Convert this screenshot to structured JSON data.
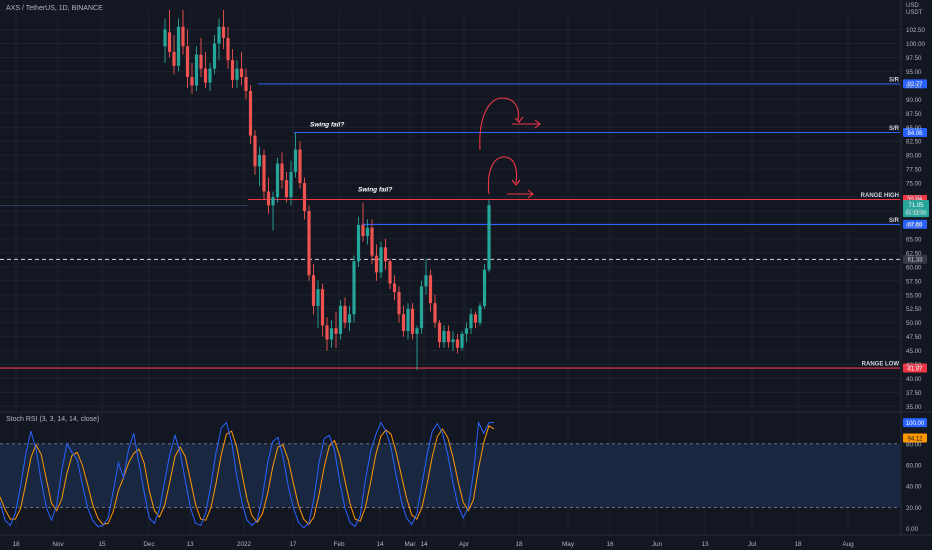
{
  "header": {
    "symbol_line": "AXS / TetherUS, 1D, BINANCE",
    "currency_top": "USD",
    "currency_bottom": "USDT"
  },
  "indicator": {
    "label": "Stoch RSI (3, 3, 14, 14, close)"
  },
  "colors": {
    "background": "#131722",
    "up": "#26a69a",
    "down": "#ef5350",
    "sr_line": "#2962ff",
    "range_line": "#f23645",
    "stoch_k": "#2962ff",
    "stoch_d": "#ff9800",
    "grid": "#1e222d",
    "axis_text": "#b2b5be",
    "annotation": "#f23645"
  },
  "chart_data": [
    {
      "type": "candlestick",
      "y_axis_ticks": [
        "102.50",
        "100.00",
        "97.50",
        "95.00",
        "92.50",
        "90.00",
        "87.50",
        "85.00",
        "82.50",
        "80.00",
        "77.50",
        "75.00",
        "72.50",
        "70.00",
        "67.50",
        "65.00",
        "62.50",
        "60.00",
        "57.50",
        "55.00",
        "52.50",
        "50.00",
        "47.50",
        "45.00",
        "42.50",
        "40.00",
        "37.50",
        "35.00"
      ],
      "ylim": [
        34,
        106
      ],
      "x_axis_ticks": [
        "18",
        "Nov",
        "15",
        "Dec",
        "13",
        "2022",
        "17",
        "Feb",
        "14",
        "Mar",
        "14",
        "Apr",
        "18",
        "May",
        "16",
        "Jun",
        "13",
        "Jul",
        "18",
        "Aug"
      ],
      "horizontal_levels": [
        {
          "label": "S/R",
          "value": 92.77,
          "tag": "92.77",
          "kind": "sr"
        },
        {
          "label": "S/R",
          "value": 84.06,
          "tag": "84.06",
          "kind": "sr"
        },
        {
          "label": "RANGE HIGH",
          "value": 72.06,
          "tag": "72.06",
          "kind": "range"
        },
        {
          "label": "S/R",
          "value": 67.6,
          "tag": "67.60",
          "kind": "sr"
        },
        {
          "label": "RANGE LOW",
          "value": 41.87,
          "tag": "41.87",
          "kind": "range"
        }
      ],
      "dashed_level": {
        "value": 61.33,
        "tag": "61.33"
      },
      "last_price": {
        "price": "71.05",
        "countdown": "01:11:00",
        "value": 71.05
      },
      "annotations": [
        {
          "text": "Swing fail?"
        },
        {
          "text": "Swing fail?"
        }
      ],
      "candles": [
        {
          "o": 99.5,
          "h": 104.5,
          "l": 96.5,
          "c": 102.5
        },
        {
          "o": 102.0,
          "h": 106.0,
          "l": 97.5,
          "c": 98.5
        },
        {
          "o": 98.5,
          "h": 101.5,
          "l": 94.5,
          "c": 96.0
        },
        {
          "o": 96.0,
          "h": 104.5,
          "l": 95.0,
          "c": 103.0
        },
        {
          "o": 103.0,
          "h": 106.0,
          "l": 98.0,
          "c": 99.5
        },
        {
          "o": 99.5,
          "h": 102.5,
          "l": 92.0,
          "c": 94.0
        },
        {
          "o": 94.0,
          "h": 96.5,
          "l": 91.0,
          "c": 92.5
        },
        {
          "o": 92.5,
          "h": 99.5,
          "l": 91.5,
          "c": 98.0
        },
        {
          "o": 98.0,
          "h": 101.0,
          "l": 94.0,
          "c": 95.5
        },
        {
          "o": 95.5,
          "h": 98.5,
          "l": 92.0,
          "c": 93.0
        },
        {
          "o": 93.0,
          "h": 96.5,
          "l": 91.5,
          "c": 95.5
        },
        {
          "o": 95.5,
          "h": 101.5,
          "l": 94.5,
          "c": 100.0
        },
        {
          "o": 100.0,
          "h": 104.5,
          "l": 97.0,
          "c": 103.0
        },
        {
          "o": 103.0,
          "h": 106.0,
          "l": 99.0,
          "c": 101.0
        },
        {
          "o": 101.0,
          "h": 103.0,
          "l": 95.5,
          "c": 97.0
        },
        {
          "o": 97.0,
          "h": 99.0,
          "l": 92.0,
          "c": 93.5
        },
        {
          "o": 93.5,
          "h": 97.0,
          "l": 92.0,
          "c": 95.5
        },
        {
          "o": 95.5,
          "h": 98.5,
          "l": 92.5,
          "c": 94.0
        },
        {
          "o": 94.0,
          "h": 95.5,
          "l": 90.0,
          "c": 91.5
        },
        {
          "o": 91.5,
          "h": 92.5,
          "l": 82.0,
          "c": 83.5
        },
        {
          "o": 83.5,
          "h": 84.5,
          "l": 76.5,
          "c": 78.0
        },
        {
          "o": 78.0,
          "h": 81.5,
          "l": 74.5,
          "c": 80.0
        },
        {
          "o": 80.0,
          "h": 81.0,
          "l": 72.0,
          "c": 73.5
        },
        {
          "o": 73.5,
          "h": 76.0,
          "l": 69.5,
          "c": 71.0
        },
        {
          "o": 71.0,
          "h": 73.5,
          "l": 66.5,
          "c": 72.5
        },
        {
          "o": 72.5,
          "h": 79.5,
          "l": 71.5,
          "c": 78.5
        },
        {
          "o": 78.5,
          "h": 80.5,
          "l": 74.0,
          "c": 75.5
        },
        {
          "o": 75.5,
          "h": 77.0,
          "l": 71.5,
          "c": 72.5
        },
        {
          "o": 72.5,
          "h": 79.0,
          "l": 71.0,
          "c": 77.0
        },
        {
          "o": 77.0,
          "h": 84.0,
          "l": 76.0,
          "c": 81.0
        },
        {
          "o": 81.0,
          "h": 82.5,
          "l": 74.0,
          "c": 75.0
        },
        {
          "o": 75.0,
          "h": 76.0,
          "l": 68.5,
          "c": 70.0
        },
        {
          "o": 70.0,
          "h": 71.0,
          "l": 57.5,
          "c": 58.5
        },
        {
          "o": 58.5,
          "h": 60.5,
          "l": 51.5,
          "c": 53.0
        },
        {
          "o": 53.0,
          "h": 57.5,
          "l": 49.0,
          "c": 56.0
        },
        {
          "o": 56.0,
          "h": 57.0,
          "l": 47.5,
          "c": 49.5
        },
        {
          "o": 49.5,
          "h": 51.0,
          "l": 45.0,
          "c": 47.0
        },
        {
          "o": 47.0,
          "h": 50.5,
          "l": 45.5,
          "c": 49.0
        },
        {
          "o": 49.0,
          "h": 52.0,
          "l": 45.5,
          "c": 48.0
        },
        {
          "o": 48.0,
          "h": 54.0,
          "l": 47.0,
          "c": 53.0
        },
        {
          "o": 53.0,
          "h": 54.5,
          "l": 49.0,
          "c": 50.0
        },
        {
          "o": 50.0,
          "h": 53.0,
          "l": 48.5,
          "c": 51.5
        },
        {
          "o": 51.5,
          "h": 62.0,
          "l": 50.0,
          "c": 61.0
        },
        {
          "o": 61.0,
          "h": 69.0,
          "l": 60.0,
          "c": 67.5
        },
        {
          "o": 67.5,
          "h": 71.5,
          "l": 64.5,
          "c": 65.5
        },
        {
          "o": 65.5,
          "h": 68.5,
          "l": 64.0,
          "c": 67.0
        },
        {
          "o": 67.0,
          "h": 68.5,
          "l": 60.5,
          "c": 62.0
        },
        {
          "o": 62.0,
          "h": 64.0,
          "l": 57.5,
          "c": 59.0
        },
        {
          "o": 59.0,
          "h": 64.5,
          "l": 58.0,
          "c": 63.5
        },
        {
          "o": 63.5,
          "h": 65.0,
          "l": 59.5,
          "c": 61.0
        },
        {
          "o": 61.0,
          "h": 61.5,
          "l": 56.0,
          "c": 57.0
        },
        {
          "o": 57.0,
          "h": 58.5,
          "l": 54.0,
          "c": 55.5
        },
        {
          "o": 55.5,
          "h": 56.5,
          "l": 50.0,
          "c": 51.5
        },
        {
          "o": 51.5,
          "h": 53.0,
          "l": 47.5,
          "c": 48.5
        },
        {
          "o": 48.5,
          "h": 53.5,
          "l": 47.0,
          "c": 52.5
        },
        {
          "o": 52.5,
          "h": 53.5,
          "l": 47.0,
          "c": 48.0
        },
        {
          "o": 48.0,
          "h": 49.5,
          "l": 41.5,
          "c": 49.0
        },
        {
          "o": 49.0,
          "h": 57.5,
          "l": 48.0,
          "c": 56.5
        },
        {
          "o": 56.5,
          "h": 61.5,
          "l": 55.0,
          "c": 58.5
        },
        {
          "o": 58.5,
          "h": 59.5,
          "l": 52.0,
          "c": 53.5
        },
        {
          "o": 53.5,
          "h": 55.0,
          "l": 49.0,
          "c": 50.0
        },
        {
          "o": 50.0,
          "h": 50.5,
          "l": 45.5,
          "c": 46.5
        },
        {
          "o": 46.5,
          "h": 49.5,
          "l": 45.5,
          "c": 48.5
        },
        {
          "o": 48.5,
          "h": 49.5,
          "l": 45.5,
          "c": 46.5
        },
        {
          "o": 46.5,
          "h": 48.5,
          "l": 45.0,
          "c": 47.0
        },
        {
          "o": 47.0,
          "h": 48.0,
          "l": 44.5,
          "c": 45.5
        },
        {
          "o": 45.5,
          "h": 48.5,
          "l": 45.0,
          "c": 48.0
        },
        {
          "o": 48.0,
          "h": 50.0,
          "l": 46.5,
          "c": 49.0
        },
        {
          "o": 49.0,
          "h": 52.5,
          "l": 48.0,
          "c": 51.5
        },
        {
          "o": 51.5,
          "h": 52.0,
          "l": 49.0,
          "c": 50.0
        },
        {
          "o": 50.0,
          "h": 53.5,
          "l": 49.5,
          "c": 53.0
        },
        {
          "o": 53.0,
          "h": 60.5,
          "l": 52.5,
          "c": 59.5
        },
        {
          "o": 59.5,
          "h": 72.0,
          "l": 59.0,
          "c": 71.05
        }
      ]
    },
    {
      "type": "line",
      "name": "Stoch RSI (3, 3, 14, 14, close)",
      "y_axis_ticks": [
        "80.00",
        "60.00",
        "40.00",
        "20.00",
        "0.00"
      ],
      "ylim": [
        -6,
        110
      ],
      "bands": {
        "upper": 80,
        "lower": 20
      },
      "last_values": {
        "k": "100.00",
        "d": "94.12",
        "d_value": 94.12
      },
      "k": [
        25,
        8,
        3,
        15,
        40,
        70,
        92,
        75,
        45,
        20,
        8,
        22,
        55,
        80,
        72,
        65,
        42,
        20,
        8,
        2,
        3,
        10,
        35,
        62,
        48,
        75,
        90,
        62,
        35,
        10,
        5,
        18,
        45,
        70,
        88,
        72,
        45,
        20,
        5,
        3,
        15,
        42,
        72,
        95,
        100,
        82,
        50,
        25,
        8,
        3,
        8,
        30,
        62,
        82,
        86,
        68,
        40,
        20,
        6,
        1,
        5,
        28,
        62,
        85,
        88,
        74,
        45,
        20,
        6,
        2,
        12,
        46,
        72,
        88,
        100,
        92,
        76,
        50,
        26,
        10,
        4,
        14,
        42,
        70,
        92,
        99,
        90,
        70,
        44,
        22,
        10,
        20,
        52,
        100,
        90,
        100,
        100
      ],
      "d": [
        30,
        18,
        9,
        9,
        19,
        42,
        67,
        79,
        70,
        47,
        24,
        17,
        28,
        52,
        69,
        72,
        60,
        42,
        23,
        10,
        4,
        5,
        16,
        36,
        48,
        62,
        71,
        75,
        62,
        36,
        17,
        11,
        22,
        44,
        68,
        77,
        68,
        46,
        23,
        9,
        8,
        20,
        43,
        70,
        89,
        92,
        77,
        52,
        28,
        12,
        6,
        14,
        33,
        58,
        77,
        79,
        65,
        43,
        22,
        9,
        4,
        11,
        32,
        58,
        78,
        83,
        69,
        46,
        24,
        9,
        7,
        20,
        43,
        69,
        87,
        93,
        89,
        72,
        50,
        29,
        13,
        9,
        20,
        42,
        68,
        87,
        94,
        86,
        68,
        45,
        25,
        17,
        27,
        57,
        81,
        97,
        94
      ]
    }
  ]
}
